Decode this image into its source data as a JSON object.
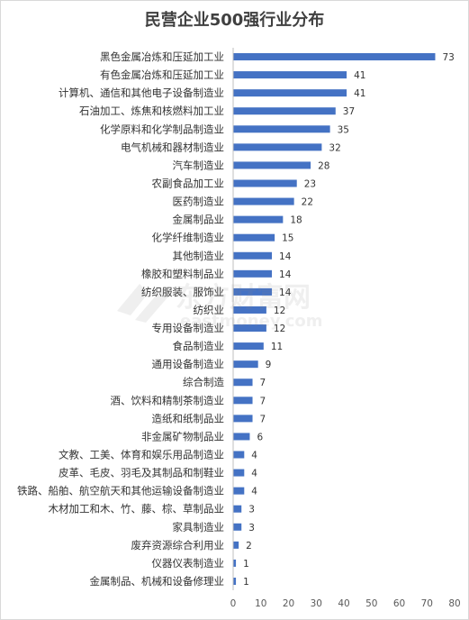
{
  "chart_data": {
    "type": "bar",
    "orientation": "horizontal",
    "title": "民营企业500强行业分布",
    "categories": [
      "黑色金属冶炼和压延加工业",
      "有色金属冶炼和压延加工业",
      "计算机、通信和其他电子设备制造业",
      "石油加工、炼焦和核燃料加工业",
      "化学原料和化学制品制造业",
      "电气机械和器材制造业",
      "汽车制造业",
      "农副食品加工业",
      "医药制造业",
      "金属制品业",
      "化学纤维制造业",
      "其他制造业",
      "橡胶和塑料制品业",
      "纺织服装、服饰业",
      "纺织业",
      "专用设备制造业",
      "食品制造业",
      "通用设备制造业",
      "综合制造",
      "酒、饮料和精制茶制造业",
      "造纸和纸制品业",
      "非金属矿物制品业",
      "文教、工美、体育和娱乐用品制造业",
      "皮革、毛皮、羽毛及其制品和制鞋业",
      "铁路、船舶、航空航天和其他运输设备制造业",
      "木材加工和木、竹、藤、棕、草制品业",
      "家具制造业",
      "废弃资源综合利用业",
      "仪器仪表制造业",
      "金属制品、机械和设备修理业"
    ],
    "values": [
      73,
      41,
      41,
      37,
      35,
      32,
      28,
      23,
      22,
      18,
      15,
      14,
      14,
      14,
      12,
      12,
      11,
      9,
      7,
      7,
      7,
      6,
      4,
      4,
      4,
      3,
      3,
      2,
      1,
      1
    ],
    "xlim": [
      0,
      80
    ],
    "x_ticks": [
      "0",
      "10",
      "20",
      "30",
      "40",
      "50",
      "60",
      "70",
      "80"
    ],
    "grid": false,
    "legend": "none",
    "bar_color": "#4472c4"
  },
  "watermark": {
    "text": "东方财富网",
    "subtext": "eastmoney.com"
  }
}
